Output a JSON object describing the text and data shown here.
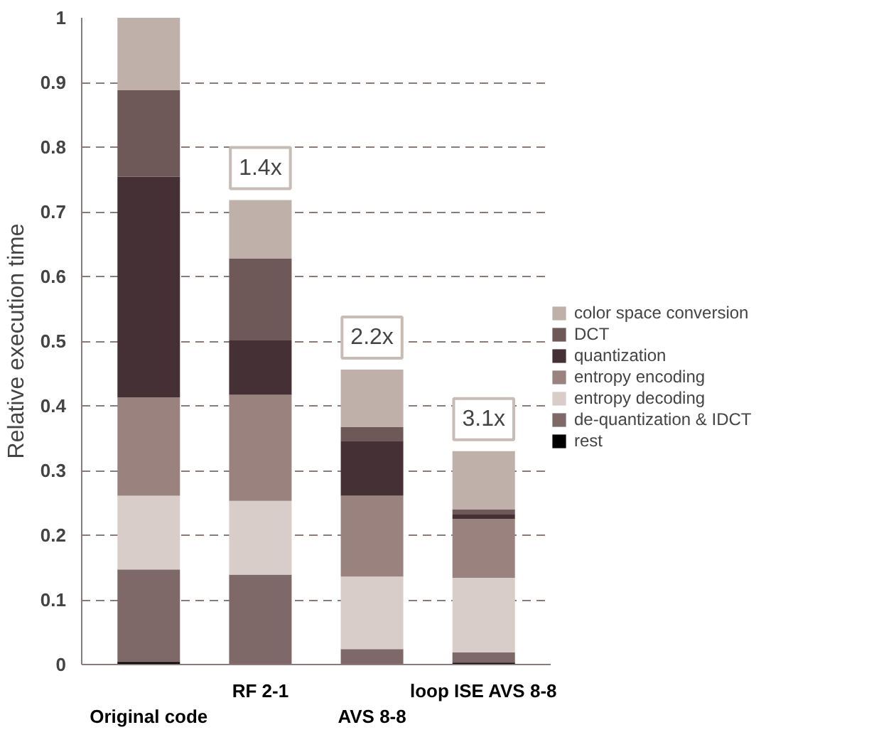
{
  "chart_data": {
    "type": "bar",
    "stacked": true,
    "ylabel": "Relative execution time",
    "categories": [
      "Original code",
      "RF 2-1",
      "AVS 8-8",
      "loop ISE AVS 8-8"
    ],
    "series": [
      {
        "name": "rest",
        "color": "#000000",
        "values": [
          0.004,
          0,
          0,
          0.003
        ]
      },
      {
        "name": "de-quantization & IDCT",
        "color": "#7e6868",
        "values": [
          0.143,
          0.139,
          0.024,
          0.016
        ]
      },
      {
        "name": "entropy decoding",
        "color": "#d8cdc8",
        "values": [
          0.114,
          0.114,
          0.112,
          0.115
        ]
      },
      {
        "name": "entropy encoding",
        "color": "#9a837e",
        "values": [
          0.152,
          0.164,
          0.125,
          0.091
        ]
      },
      {
        "name": "quantization",
        "color": "#443035",
        "values": [
          0.341,
          0.084,
          0.085,
          0.007
        ]
      },
      {
        "name": "DCT",
        "color": "#6e5858",
        "values": [
          0.134,
          0.127,
          0.021,
          0.008
        ]
      },
      {
        "name": "color space conversion",
        "color": "#bfb0a9",
        "values": [
          0.112,
          0.09,
          0.089,
          0.09
        ]
      }
    ],
    "ylim": [
      0,
      1
    ],
    "yticks": [
      0,
      0.1,
      0.2,
      0.3,
      0.4,
      0.5,
      0.6,
      0.7,
      0.8,
      0.9,
      1
    ],
    "grid": "y",
    "legend": "right",
    "annotations": [
      {
        "text": "1.4x",
        "x": "RF 2-1",
        "y": 0.718
      },
      {
        "text": "2.2x",
        "x": "AVS 8-8",
        "y": 0.456
      },
      {
        "text": "3.1x",
        "x": "loop ISE AVS 8-8",
        "y": 0.33
      }
    ]
  }
}
